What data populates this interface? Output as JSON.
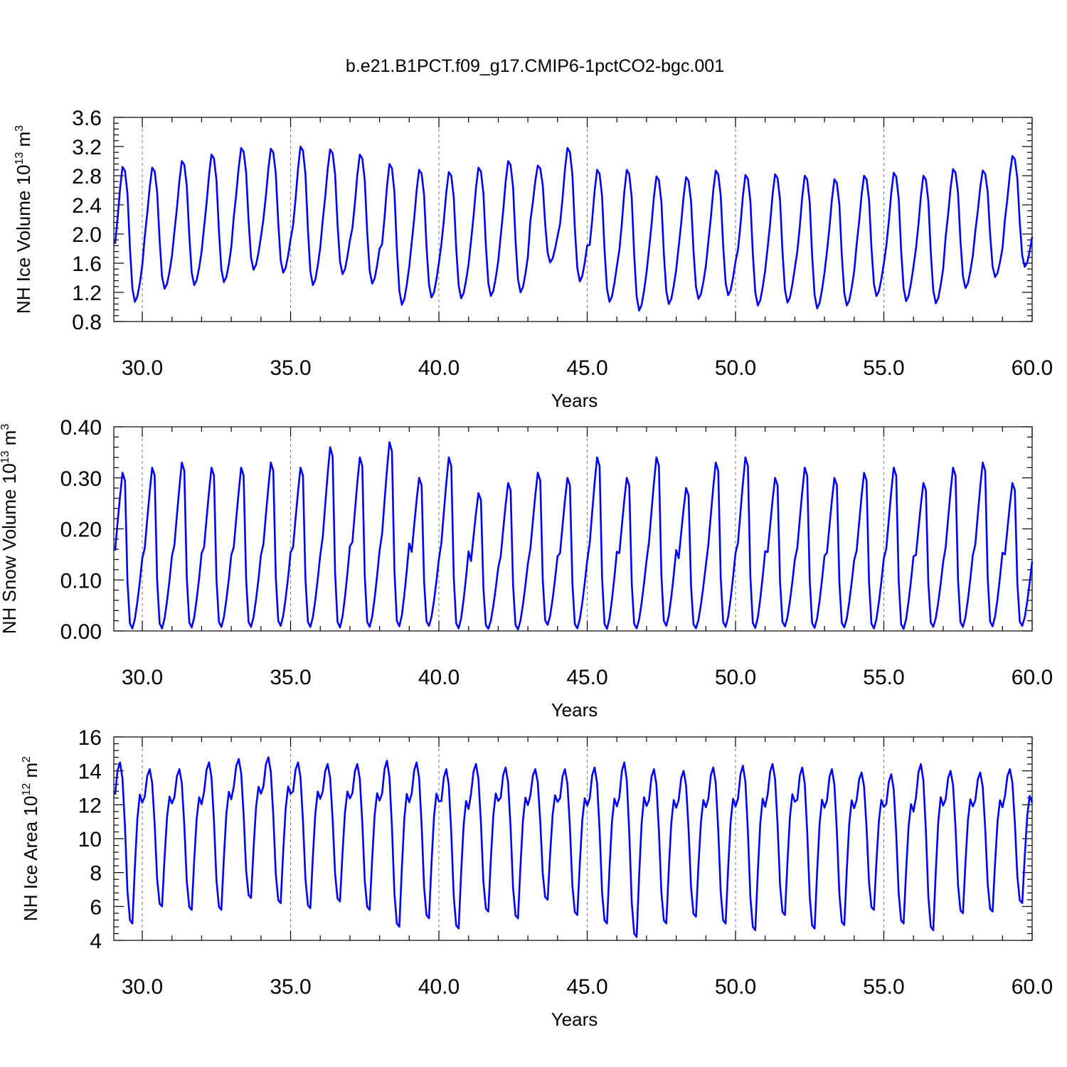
{
  "title": "b.e21.B1PCT.f09_g17.CMIP6-1pctCO2-bgc.001",
  "colors": {
    "line": "#0000ff",
    "grid": "#777777",
    "frame": "#000000"
  },
  "chart_data": [
    {
      "type": "line",
      "name": "ice_volume",
      "xlabel": "Years",
      "ylabel": {
        "base": "NH Ice Volume 10",
        "exp": "13",
        "unit": " m",
        "unit_exp": "3"
      },
      "xlim": [
        29.04,
        60.0
      ],
      "ylim": [
        0.8,
        3.6
      ],
      "x_ticks": [
        "30.0",
        "35.0",
        "40.0",
        "45.0",
        "50.0",
        "55.0",
        "60.0"
      ],
      "y_ticks": [
        "0.8",
        "1.2",
        "1.6",
        "2.0",
        "2.4",
        "2.8",
        "3.2",
        "3.6"
      ],
      "grid": "dashed vertical at major x ticks",
      "seasonal_shape": [
        0.43,
        0.62,
        0.84,
        1.0,
        0.97,
        0.8,
        0.4,
        0.1,
        0.0,
        0.04,
        0.14,
        0.27
      ],
      "series": [
        {
          "annual_max": [
            2.92,
            2.91,
            3.0,
            3.09,
            3.18,
            3.17,
            3.2,
            3.16,
            3.09,
            2.96,
            2.88,
            2.85,
            2.91,
            3.0,
            2.94,
            3.18,
            2.88,
            2.88,
            2.79,
            2.78,
            2.87,
            2.81,
            2.82,
            2.8,
            2.75,
            2.8,
            2.84,
            2.8,
            2.89,
            2.87,
            3.07
          ],
          "annual_min": [
            1.07,
            1.25,
            1.3,
            1.34,
            1.51,
            1.47,
            1.3,
            1.45,
            1.32,
            1.03,
            1.13,
            1.12,
            1.15,
            1.2,
            1.61,
            1.35,
            1.07,
            0.95,
            1.04,
            1.11,
            1.16,
            1.02,
            1.06,
            0.98,
            1.02,
            1.15,
            1.08,
            1.05,
            1.26,
            1.41,
            1.55
          ]
        }
      ]
    },
    {
      "type": "line",
      "name": "snow_volume",
      "xlabel": "Years",
      "ylabel": {
        "base": "NH Snow Volume 10",
        "exp": "13",
        "unit": " m",
        "unit_exp": "3"
      },
      "xlim": [
        29.04,
        60.0
      ],
      "ylim": [
        0.0,
        0.4
      ],
      "x_ticks": [
        "30.0",
        "35.0",
        "40.0",
        "45.0",
        "50.0",
        "55.0",
        "60.0"
      ],
      "y_ticks": [
        "0.00",
        "0.10",
        "0.20",
        "0.30",
        "0.40"
      ],
      "grid": "dashed vertical at major x ticks",
      "seasonal_shape": [
        0.5,
        0.68,
        0.85,
        1.0,
        0.95,
        0.3,
        0.03,
        0.0,
        0.06,
        0.17,
        0.3,
        0.45
      ],
      "series": [
        {
          "annual_max": [
            0.31,
            0.32,
            0.33,
            0.32,
            0.32,
            0.33,
            0.32,
            0.36,
            0.34,
            0.37,
            0.3,
            0.34,
            0.27,
            0.29,
            0.31,
            0.3,
            0.34,
            0.3,
            0.34,
            0.28,
            0.33,
            0.34,
            0.3,
            0.32,
            0.3,
            0.31,
            0.32,
            0.29,
            0.32,
            0.33,
            0.29
          ],
          "annual_min": [
            0.005,
            0.005,
            0.007,
            0.008,
            0.008,
            0.01,
            0.008,
            0.007,
            0.008,
            0.009,
            0.01,
            0.005,
            0.004,
            0.003,
            0.012,
            0.005,
            0.004,
            0.005,
            0.01,
            0.005,
            0.008,
            0.006,
            0.009,
            0.006,
            0.007,
            0.005,
            0.004,
            0.008,
            0.008,
            0.009,
            0.01
          ]
        }
      ]
    },
    {
      "type": "line",
      "name": "ice_area",
      "xlabel": "Years",
      "ylabel": {
        "base": "NH Ice Area 10",
        "exp": "12",
        "unit": " m",
        "unit_exp": "2"
      },
      "xlim": [
        29.04,
        60.0
      ],
      "ylim": [
        4,
        16
      ],
      "x_ticks": [
        "30.0",
        "35.0",
        "40.0",
        "45.0",
        "50.0",
        "55.0",
        "60.0"
      ],
      "y_ticks": [
        "4",
        "6",
        "8",
        "10",
        "12",
        "14",
        "16"
      ],
      "grid": "dashed vertical at major x ticks",
      "seasonal_shape": [
        0.8,
        0.95,
        1.0,
        0.9,
        0.6,
        0.2,
        0.02,
        0.0,
        0.35,
        0.65,
        0.8,
        0.75
      ],
      "series": [
        {
          "annual_max": [
            14.5,
            14.1,
            14.1,
            14.5,
            14.7,
            14.8,
            14.5,
            14.4,
            14.4,
            14.6,
            14.5,
            14.1,
            14.4,
            14.2,
            14.1,
            14.1,
            14.2,
            14.5,
            14.1,
            14.0,
            14.2,
            14.3,
            14.4,
            14.2,
            14.1,
            13.9,
            13.8,
            14.4,
            14.0,
            13.9,
            14.1
          ],
          "annual_min": [
            5.0,
            6.0,
            5.8,
            5.8,
            6.5,
            6.2,
            5.9,
            6.3,
            5.8,
            4.8,
            5.3,
            4.7,
            5.7,
            5.3,
            6.4,
            5.5,
            5.0,
            4.2,
            5.0,
            5.4,
            5.0,
            4.6,
            5.5,
            4.7,
            4.9,
            5.8,
            5.0,
            4.6,
            5.6,
            5.7,
            6.2
          ]
        }
      ]
    }
  ]
}
